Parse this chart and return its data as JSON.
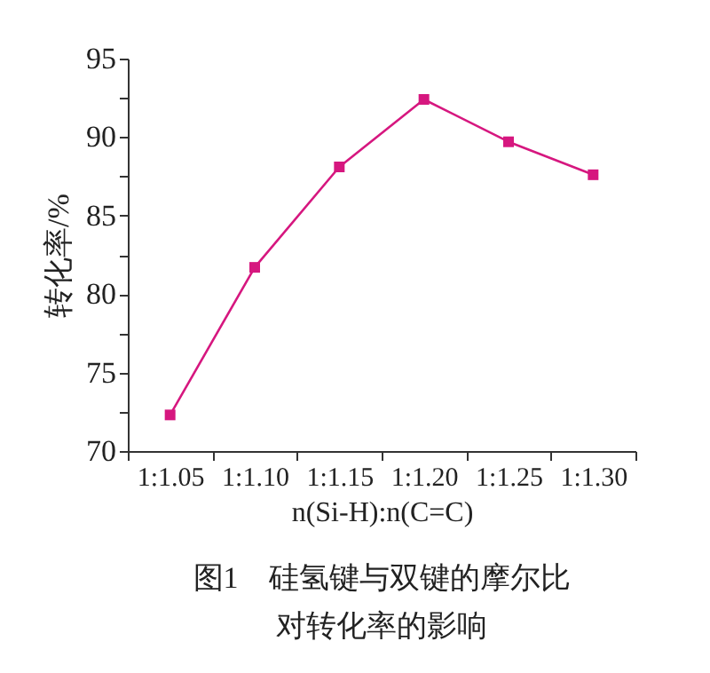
{
  "chart_data": {
    "type": "line",
    "title": "图1　硅氢键与双键的摩尔比",
    "subtitle": "对转化率的影响",
    "xlabel": "n(Si-H):n(C=C)",
    "ylabel": "转化率/%",
    "categories": [
      "1:1.05",
      "1:1.10",
      "1:1.15",
      "1:1.20",
      "1:1.25",
      "1:1.30"
    ],
    "series": [
      {
        "color": "#d6177f",
        "values": [
          72.3,
          81.7,
          88.1,
          92.4,
          89.7,
          87.6
        ]
      }
    ],
    "ylim": [
      70,
      95
    ],
    "yticks": [
      70,
      {
        "value": 72.5,
        "label": null
      },
      75,
      {
        "value": 77.5,
        "label": null
      },
      80,
      {
        "value": 82.5,
        "label": null
      },
      85,
      {
        "value": 87.5,
        "label": null
      },
      90,
      {
        "value": 92.5,
        "label": null
      },
      95
    ],
    "marker": "square",
    "line_style": "solid",
    "grid": false
  }
}
